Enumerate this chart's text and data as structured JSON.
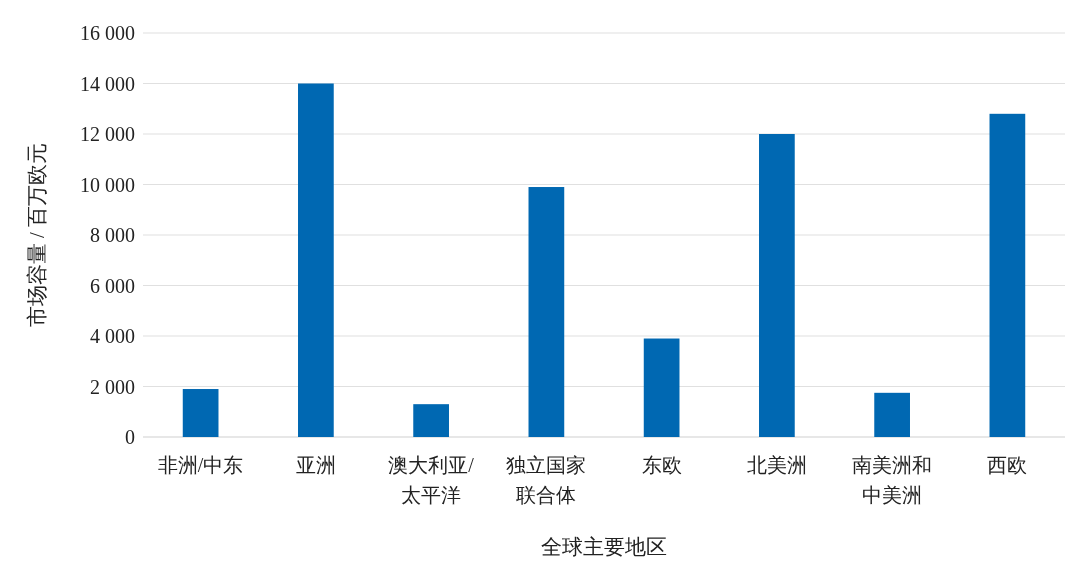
{
  "chart_data": {
    "type": "bar",
    "categories": [
      "非洲/中东",
      "亚洲",
      "澳大利亚/太平洋",
      "独立国家联合体",
      "东欧",
      "北美洲",
      "南美洲和中美洲",
      "西欧"
    ],
    "values": [
      1900,
      14000,
      1300,
      9900,
      3900,
      12000,
      1750,
      12800
    ],
    "color": "#0068b2",
    "xlabel": "全球主要地区",
    "ylabel": "市场容量 / 百万欧元",
    "ylim": [
      0,
      16000
    ],
    "yticks": [
      0,
      {
        "value": 2000,
        "label": "2 000"
      },
      {
        "value": 4000,
        "label": "4 000"
      },
      {
        "value": 6000,
        "label": "6 000"
      },
      {
        "value": 8000,
        "label": "8 000"
      },
      {
        "value": 10000,
        "label": "10 000"
      },
      {
        "value": 12000,
        "label": "12 000"
      },
      {
        "value": 14000,
        "label": "14 000"
      },
      {
        "value": 16000,
        "label": "16 000"
      }
    ],
    "grid": "y"
  }
}
